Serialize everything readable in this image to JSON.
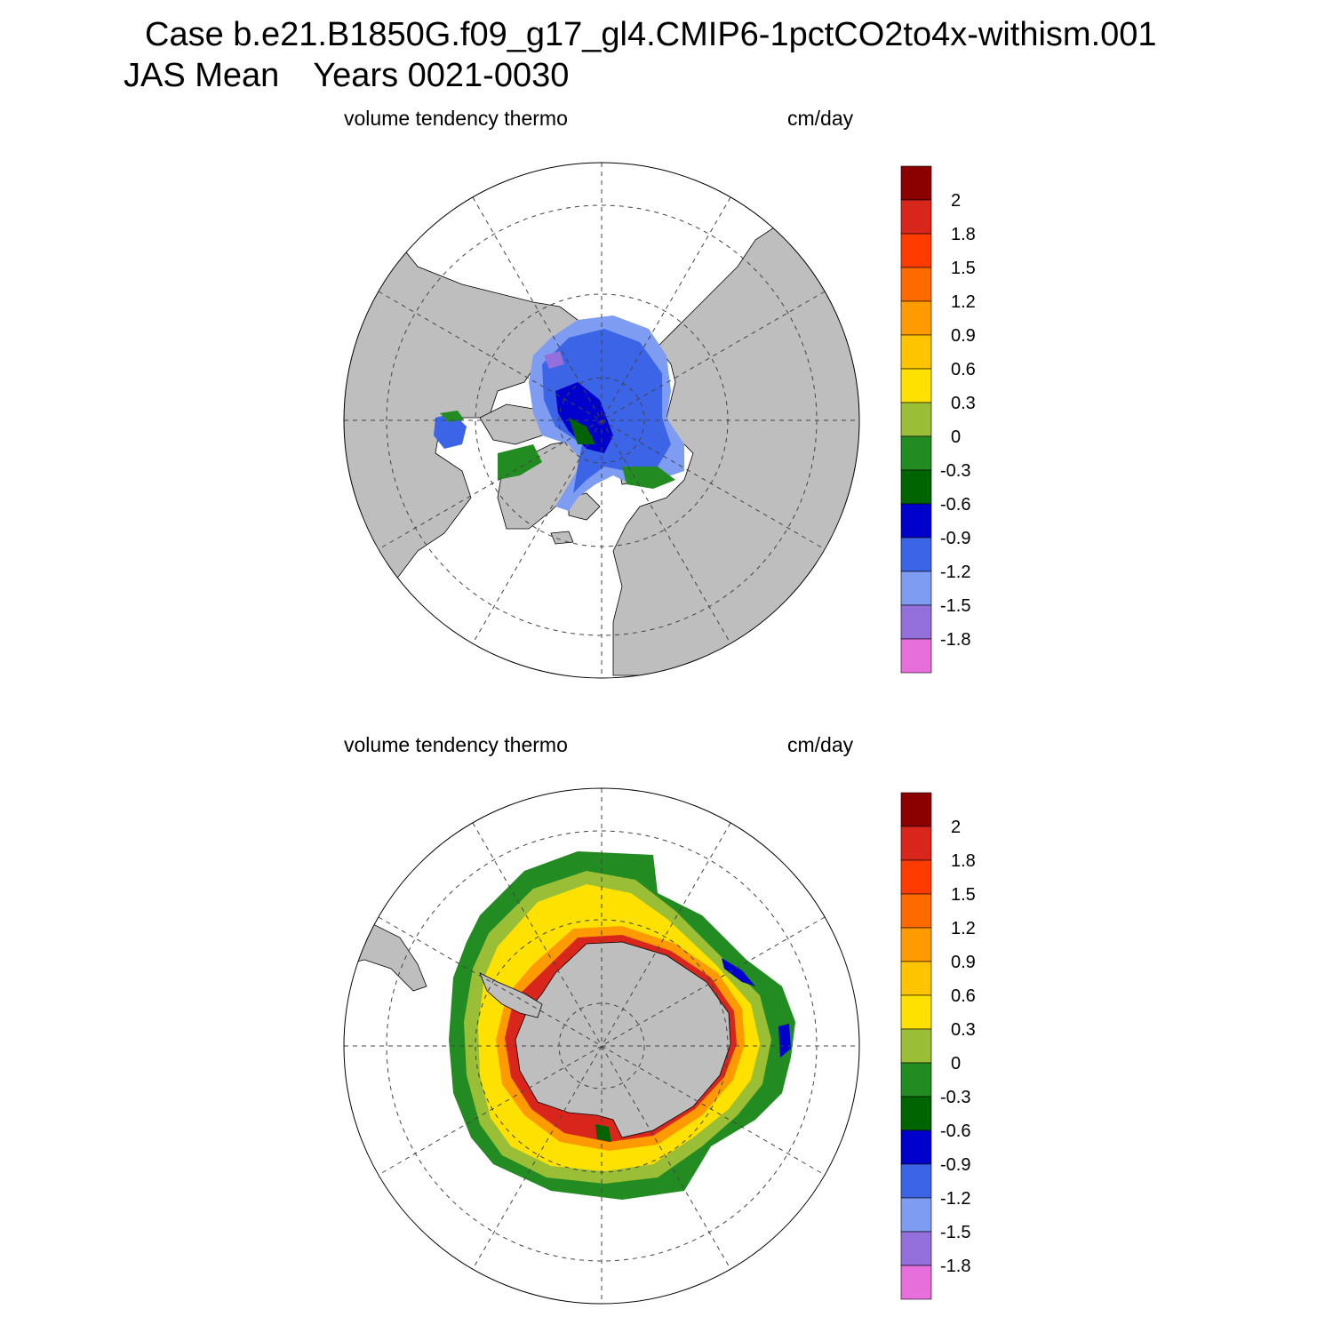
{
  "title": {
    "case_line": "Case b.e21.B1850G.f09_g17_gl4.CMIP6-1pctCO2to4x-withism.001",
    "season": "JAS Mean",
    "years": "Years 0021-0030"
  },
  "panels": [
    {
      "hemisphere": "north",
      "left_label": "volume tendency thermo",
      "right_label": "cm/day"
    },
    {
      "hemisphere": "south",
      "left_label": "volume tendency thermo",
      "right_label": "cm/day"
    }
  ],
  "colorbar": {
    "labels": [
      "2",
      "1.8",
      "1.5",
      "1.2",
      "0.9",
      "0.6",
      "0.3",
      "0",
      "-0.3",
      "-0.6",
      "-0.9",
      "-1.2",
      "-1.5",
      "-1.8"
    ],
    "colors": [
      "#8b0000",
      "#d9261c",
      "#ff3b00",
      "#ff6a00",
      "#ff9a00",
      "#ffc400",
      "#ffe100",
      "#9abf36",
      "#228b22",
      "#006400",
      "#0000cd",
      "#3c64e6",
      "#7d9cf2",
      "#9370db",
      "#e66fdc"
    ]
  },
  "map_colors": {
    "land": "#bebebe",
    "ocean": "#ffffff"
  }
}
